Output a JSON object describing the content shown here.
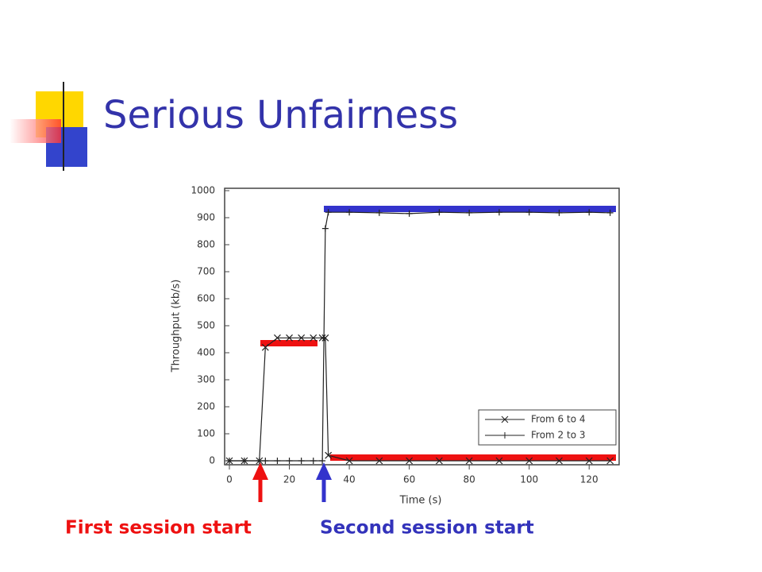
{
  "title": "Serious Unfairness",
  "annotations": [
    "First session start",
    "Second session start"
  ],
  "chart_data": {
    "type": "line",
    "x_label": "Time (s)",
    "y_label": "Throughput (kb/s)",
    "x": [
      0,
      5,
      10,
      12,
      16,
      20,
      24,
      28,
      31,
      32,
      33,
      40,
      50,
      60,
      70,
      80,
      90,
      100,
      110,
      120,
      127
    ],
    "series": [
      {
        "name": "From 6 to 4",
        "color": "#222222",
        "marker": "x",
        "values": [
          0,
          0,
          0,
          420,
          455,
          455,
          455,
          455,
          455,
          455,
          20,
          0,
          0,
          0,
          0,
          0,
          0,
          0,
          0,
          0,
          0
        ]
      },
      {
        "name": "From 2 to 3",
        "color": "#222222",
        "marker": "+",
        "values": [
          0,
          0,
          0,
          0,
          0,
          0,
          0,
          0,
          0,
          860,
          920,
          920,
          918,
          915,
          920,
          918,
          920,
          920,
          918,
          920,
          918
        ]
      }
    ],
    "xlim": [
      0,
      130
    ],
    "xticks": [
      0,
      20,
      40,
      60,
      80,
      100,
      120
    ],
    "ylim": [
      0,
      1000
    ],
    "yticks": [
      0,
      100,
      200,
      300,
      400,
      500,
      600,
      700,
      800,
      900,
      1000
    ],
    "legend": "lower right"
  }
}
